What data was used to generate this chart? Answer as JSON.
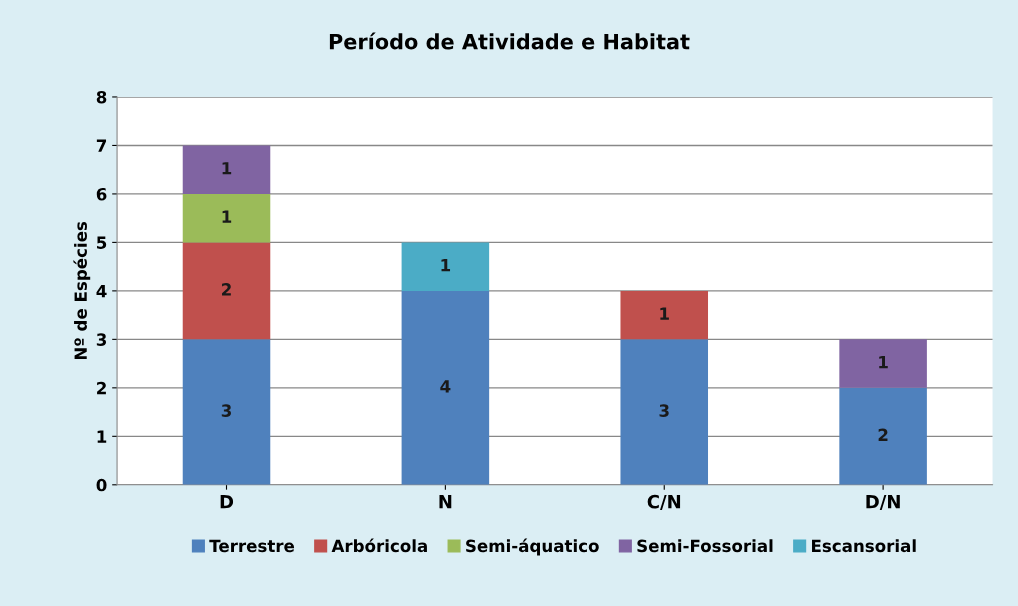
{
  "chart_data": {
    "type": "bar",
    "title": "Período de Atividade e Habitat",
    "ylabel": "Nº de Espécies",
    "categories": [
      "D",
      "N",
      "C/N",
      "D/N"
    ],
    "stacked": true,
    "data_labels": true,
    "series": [
      {
        "name": "Terrestre",
        "color": "#4f81bd",
        "values": [
          3,
          4,
          3,
          2
        ]
      },
      {
        "name": "Arbóricola",
        "color": "#c0504d",
        "values": [
          2,
          null,
          1,
          null
        ]
      },
      {
        "name": "Semi-áquatico",
        "color": "#9bbb59",
        "values": [
          1,
          null,
          null,
          null
        ]
      },
      {
        "name": "Semi-Fossorial",
        "color": "#8064a2",
        "values": [
          1,
          null,
          null,
          1
        ]
      },
      {
        "name": "Escansorial",
        "color": "#4bacc6",
        "values": [
          null,
          1,
          null,
          null
        ]
      }
    ],
    "ylim": [
      0,
      8
    ],
    "yticks": [
      0,
      1,
      2,
      3,
      4,
      5,
      6,
      7,
      8
    ],
    "grid": "y",
    "legend": "bottom"
  }
}
